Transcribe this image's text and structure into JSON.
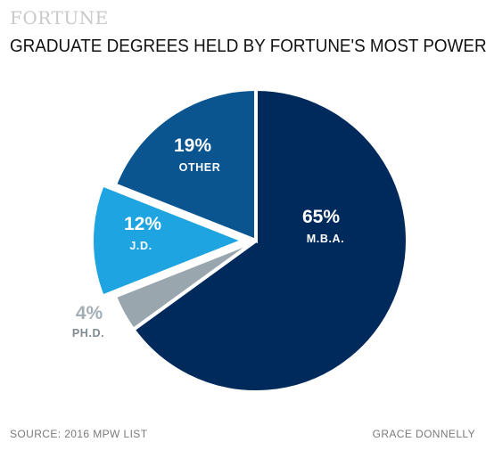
{
  "brand": "FORTUNE",
  "footer": {
    "source": "SOURCE: 2016 MPW LIST",
    "credit": "GRACE DONNELLY"
  },
  "chart_data": {
    "type": "pie",
    "title": "GRADUATE DEGREES HELD BY FORTUNE'S MOST POWERFUL WOMEN",
    "slices": [
      {
        "label": "M.B.A.",
        "value": 65,
        "value_label": "65%",
        "color": "#002a5c"
      },
      {
        "label": "PH.D.",
        "value": 4,
        "value_label": "4%",
        "color": "#9aa6ae"
      },
      {
        "label": "J.D.",
        "value": 12,
        "value_label": "12%",
        "color": "#1ea4e0"
      },
      {
        "label": "OTHER",
        "value": 19,
        "value_label": "19%",
        "color": "#0a5490"
      }
    ],
    "start_angle_deg": 0,
    "direction": "clockwise",
    "exploded": [
      "J.D."
    ],
    "legend": "none"
  }
}
